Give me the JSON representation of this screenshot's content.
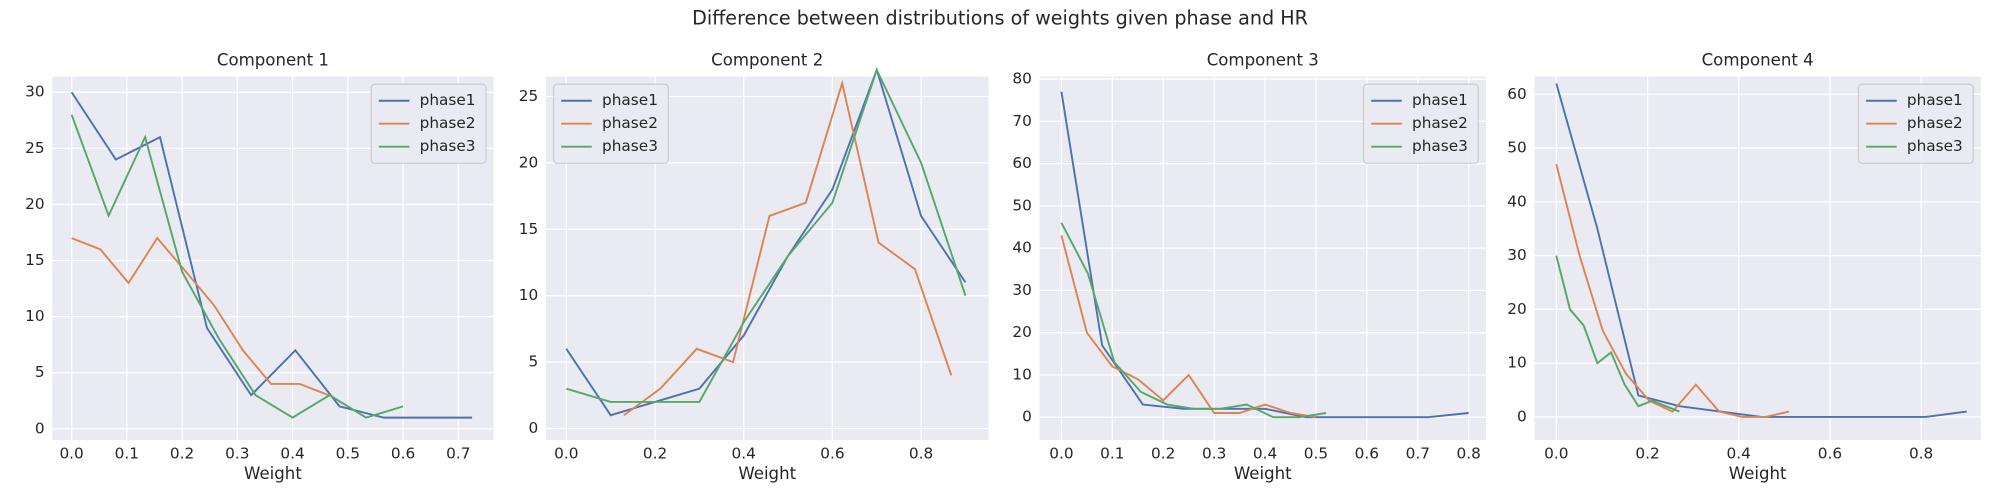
{
  "title": "Difference between distributions of weights given phase and HR",
  "chart_data": [
    {
      "type": "line",
      "title": "Component 1",
      "xlabel": "Weight",
      "legend": "upper right",
      "grid": true,
      "xlim": [
        -0.035,
        0.764
      ],
      "ylim": [
        -1.0,
        31.4
      ],
      "xticks": [
        {
          "value": 0,
          "label": "0.0"
        },
        {
          "value": 0.1,
          "label": "0.1"
        },
        {
          "value": 0.2,
          "label": "0.2"
        },
        {
          "value": 0.3,
          "label": "0.3"
        },
        {
          "value": 0.4,
          "label": "0.4"
        },
        {
          "value": 0.5,
          "label": "0.5"
        },
        {
          "value": 0.6,
          "label": "0.6"
        },
        {
          "value": 0.7,
          "label": "0.7"
        }
      ],
      "yticks": [
        0,
        5,
        10,
        15,
        20,
        25,
        30
      ],
      "series": [
        {
          "name": "phase1",
          "color": "#4c72b0",
          "x": [
            0,
            0.08,
            0.16,
            0.245,
            0.325,
            0.405,
            0.485,
            0.565,
            0.645,
            0.725
          ],
          "values": [
            30,
            24,
            26,
            9,
            3,
            7,
            2,
            1,
            1,
            1
          ]
        },
        {
          "name": "phase2",
          "color": "#dd8452",
          "x": [
            0,
            0.052,
            0.103,
            0.155,
            0.207,
            0.258,
            0.31,
            0.361,
            0.413,
            0.465
          ],
          "values": [
            17,
            16,
            13,
            17,
            14,
            11,
            7,
            4,
            4,
            3
          ]
        },
        {
          "name": "phase3",
          "color": "#55a868",
          "x": [
            0,
            0.067,
            0.133,
            0.2,
            0.267,
            0.333,
            0.4,
            0.467,
            0.533,
            0.6
          ],
          "values": [
            28,
            19,
            26,
            14,
            8,
            3,
            1,
            3,
            1,
            2
          ]
        }
      ]
    },
    {
      "type": "line",
      "title": "Component 2",
      "xlabel": "Weight",
      "legend": "upper left",
      "grid": true,
      "xlim": [
        -0.046,
        0.952
      ],
      "ylim": [
        -0.87,
        26.5
      ],
      "xticks": [
        {
          "value": 0,
          "label": "0.0"
        },
        {
          "value": 0.2,
          "label": "0.2"
        },
        {
          "value": 0.4,
          "label": "0.4"
        },
        {
          "value": 0.6,
          "label": "0.6"
        },
        {
          "value": 0.8,
          "label": "0.8"
        }
      ],
      "yticks": [
        0,
        5,
        10,
        15,
        20,
        25
      ],
      "series": [
        {
          "name": "phase1",
          "color": "#4c72b0",
          "x": [
            0,
            0.1,
            0.2,
            0.3,
            0.4,
            0.5,
            0.6,
            0.7,
            0.8,
            0.9
          ],
          "values": [
            6,
            1,
            2,
            3,
            7,
            13,
            18,
            27,
            16,
            11
          ]
        },
        {
          "name": "phase2",
          "color": "#dd8452",
          "x": [
            0.13,
            0.212,
            0.294,
            0.376,
            0.458,
            0.54,
            0.622,
            0.704,
            0.786,
            0.868
          ],
          "values": [
            1,
            3,
            6,
            5,
            16,
            17,
            26,
            14,
            12,
            4
          ]
        },
        {
          "name": "phase3",
          "color": "#55a868",
          "x": [
            0,
            0.1,
            0.2,
            0.3,
            0.4,
            0.5,
            0.6,
            0.7,
            0.8,
            0.9
          ],
          "values": [
            3,
            2,
            2,
            2,
            8,
            13,
            17,
            27,
            20,
            10
          ]
        }
      ]
    },
    {
      "type": "line",
      "title": "Component 3",
      "xlabel": "Weight",
      "legend": "upper right",
      "grid": true,
      "xlim": [
        -0.043,
        0.834
      ],
      "ylim": [
        -5.4,
        80.6
      ],
      "xticks": [
        {
          "value": 0,
          "label": "0.0"
        },
        {
          "value": 0.1,
          "label": "0.1"
        },
        {
          "value": 0.2,
          "label": "0.2"
        },
        {
          "value": 0.3,
          "label": "0.3"
        },
        {
          "value": 0.4,
          "label": "0.4"
        },
        {
          "value": 0.5,
          "label": "0.5"
        },
        {
          "value": 0.6,
          "label": "0.6"
        },
        {
          "value": 0.7,
          "label": "0.7"
        },
        {
          "value": 0.8,
          "label": "0.8"
        }
      ],
      "yticks": [
        0,
        10,
        20,
        30,
        40,
        50,
        60,
        70,
        80
      ],
      "series": [
        {
          "name": "phase1",
          "color": "#4c72b0",
          "x": [
            0,
            0.08,
            0.16,
            0.24,
            0.32,
            0.4,
            0.48,
            0.56,
            0.64,
            0.72,
            0.8
          ],
          "values": [
            77,
            17,
            3,
            2,
            2,
            2,
            0,
            0,
            0,
            0,
            1
          ]
        },
        {
          "name": "phase2",
          "color": "#dd8452",
          "x": [
            0,
            0.05,
            0.1,
            0.15,
            0.2,
            0.25,
            0.3,
            0.35,
            0.4,
            0.45,
            0.5
          ],
          "values": [
            43,
            20,
            12,
            9,
            4,
            10,
            1,
            1,
            3,
            1,
            0
          ]
        },
        {
          "name": "phase3",
          "color": "#55a868",
          "x": [
            0,
            0.052,
            0.104,
            0.156,
            0.208,
            0.26,
            0.312,
            0.364,
            0.416,
            0.468,
            0.52
          ],
          "values": [
            46,
            34,
            13,
            6,
            3,
            2,
            2,
            3,
            0,
            0,
            1
          ]
        }
      ]
    },
    {
      "type": "line",
      "title": "Component 4",
      "xlabel": "Weight",
      "legend": "upper right",
      "grid": true,
      "xlim": [
        -0.048,
        0.931
      ],
      "ylim": [
        -4.3,
        63.3
      ],
      "xticks": [
        {
          "value": 0,
          "label": "0.0"
        },
        {
          "value": 0.2,
          "label": "0.2"
        },
        {
          "value": 0.4,
          "label": "0.4"
        },
        {
          "value": 0.6,
          "label": "0.6"
        },
        {
          "value": 0.8,
          "label": "0.8"
        }
      ],
      "yticks": [
        0,
        10,
        20,
        30,
        40,
        50,
        60
      ],
      "series": [
        {
          "name": "phase1",
          "color": "#4c72b0",
          "x": [
            0,
            0.09,
            0.18,
            0.27,
            0.36,
            0.45,
            0.54,
            0.63,
            0.72,
            0.81,
            0.9
          ],
          "values": [
            62,
            35,
            4,
            2,
            1,
            0,
            0,
            0,
            0,
            0,
            1
          ]
        },
        {
          "name": "phase2",
          "color": "#dd8452",
          "x": [
            0,
            0.051,
            0.102,
            0.153,
            0.204,
            0.255,
            0.306,
            0.357,
            0.408,
            0.459,
            0.51
          ],
          "values": [
            47,
            30,
            16,
            8,
            3,
            1,
            6,
            1,
            0,
            0,
            1
          ]
        },
        {
          "name": "phase3",
          "color": "#55a868",
          "x": [
            0,
            0.03,
            0.06,
            0.09,
            0.12,
            0.15,
            0.18,
            0.21,
            0.24,
            0.27
          ],
          "values": [
            30,
            20,
            17,
            10,
            12,
            6,
            2,
            3,
            2,
            1
          ]
        }
      ]
    }
  ]
}
